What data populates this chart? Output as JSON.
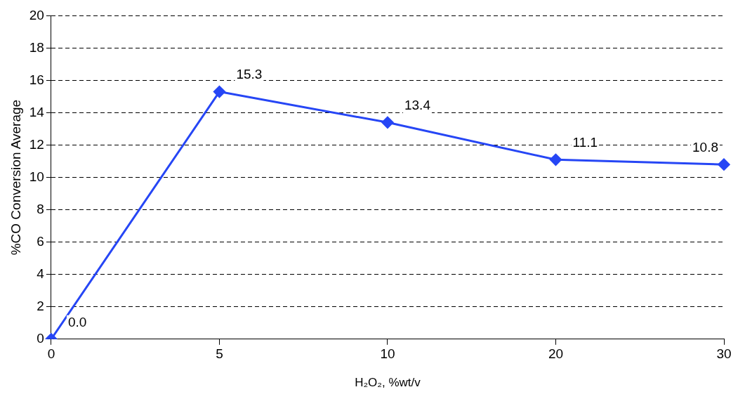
{
  "chart_data": {
    "type": "line",
    "xlabel": "H₂O₂, %wt/v",
    "ylabel": "%CO Conversion Average",
    "categories": [
      "0",
      "5",
      "10",
      "20",
      "30"
    ],
    "series": [
      {
        "color": "#2646f5",
        "values": [
          0.0,
          15.3,
          13.4,
          11.1,
          10.8
        ],
        "value_labels": [
          "0.0",
          "15.3",
          "13.4",
          "11.1",
          "10.8"
        ]
      }
    ],
    "ylim": [
      0,
      20
    ],
    "yticks": [
      0,
      2,
      4,
      6,
      8,
      10,
      12,
      14,
      16,
      18,
      20
    ],
    "grid": "y",
    "legend": false,
    "marker": "diamond",
    "line_style": "solid"
  }
}
